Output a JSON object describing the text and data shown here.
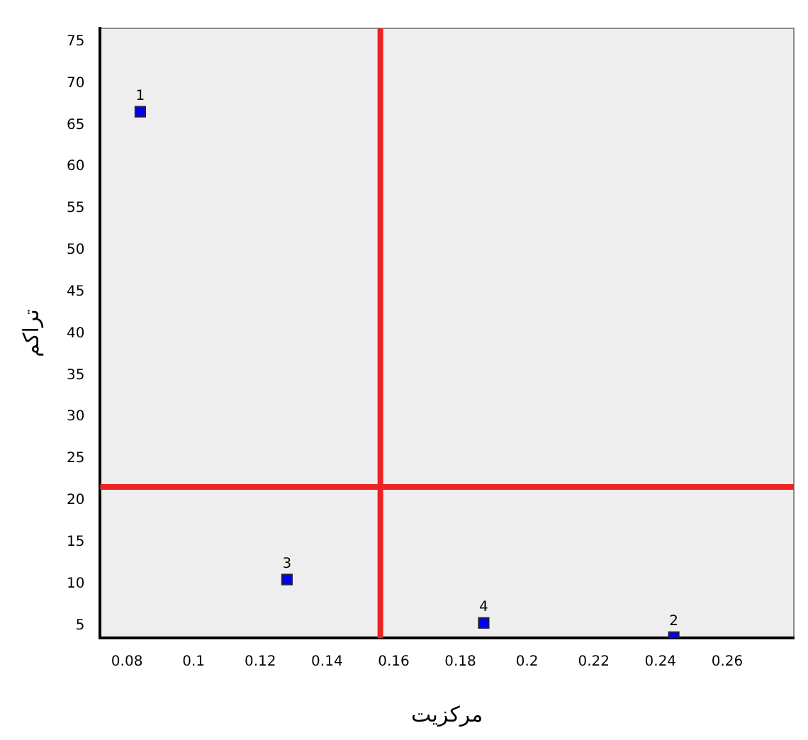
{
  "chart_data": {
    "type": "scatter",
    "xlabel": "مرکزیت",
    "ylabel": "تراکم",
    "x": [
      0.084,
      0.244,
      0.128,
      0.187
    ],
    "values": [
      66.6,
      3.6,
      10.5,
      5.3
    ],
    "annotations": [
      {
        "text": "1",
        "x": 0.084,
        "y": 66.6
      },
      {
        "text": "2",
        "x": 0.244,
        "y": 3.6
      },
      {
        "text": "3",
        "x": 0.128,
        "y": 10.5
      },
      {
        "text": "4",
        "x": 0.187,
        "y": 5.3
      }
    ],
    "color": "#0000ff",
    "marker": "square",
    "xlim": [
      0.072,
      0.28
    ],
    "ylim": [
      3.5,
      76.6
    ],
    "xticks": [
      0.08,
      0.1,
      0.12,
      0.14,
      0.16,
      0.18,
      0.2,
      0.22,
      0.24,
      0.26
    ],
    "yticks": [
      5,
      10,
      15,
      20,
      25,
      30,
      35,
      40,
      45,
      50,
      55,
      60,
      65,
      70,
      75
    ],
    "ref_lines": [
      {
        "axis": "x",
        "value": 0.156,
        "color": "#ee2222"
      },
      {
        "axis": "y",
        "value": 21.6,
        "color": "#ee2222"
      }
    ]
  }
}
